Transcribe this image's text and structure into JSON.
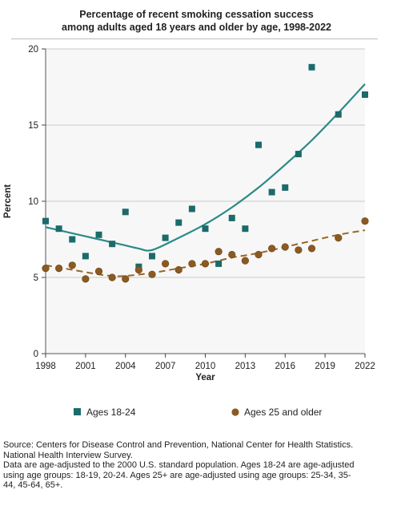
{
  "title_line1": "Percentage of recent smoking cessation success",
  "title_line2": "among adults aged 18 years and older by age, 1998-2022",
  "source_lines": [
    "Source: Centers for Disease Control and Prevention, National Center for Health Statistics.",
    "National Health Interview Survey.",
    "Data are age-adjusted to the 2000 U.S. standard population. Ages 18-24 are age-adjusted",
    "using age groups: 18-19, 20-24. Ages 25+ are age-adjusted using age groups: 25-34, 35-",
    "44, 45-64, 65+."
  ],
  "colors": {
    "young": "#1b6b6b",
    "young_line": "#2a8a85",
    "older": "#8b5a22",
    "older_line": "#9b6526",
    "plot_bg": "#f7f7f7",
    "grid": "#c8c8c8"
  },
  "chart_data": {
    "type": "scatter",
    "title": "Percentage of recent smoking cessation success among adults aged 18 years and older by age, 1998-2022",
    "xlabel": "Year",
    "ylabel": "Percent",
    "xlim": [
      1998,
      2022
    ],
    "ylim": [
      0,
      20
    ],
    "xticks": [
      1998,
      2001,
      2004,
      2007,
      2010,
      2013,
      2016,
      2019,
      2022
    ],
    "yticks": [
      0,
      5,
      10,
      15,
      20
    ],
    "grid": true,
    "legend_position": "bottom",
    "series": [
      {
        "name": "Ages 18-24",
        "marker": "square",
        "x": [
          1998,
          1999,
          2000,
          2001,
          2002,
          2003,
          2004,
          2005,
          2006,
          2007,
          2008,
          2009,
          2010,
          2011,
          2012,
          2013,
          2014,
          2015,
          2016,
          2017,
          2018,
          2020,
          2022
        ],
        "y": [
          8.7,
          8.2,
          7.5,
          6.4,
          7.8,
          7.2,
          9.3,
          5.7,
          6.4,
          7.6,
          8.6,
          9.5,
          8.2,
          5.9,
          8.9,
          8.2,
          13.7,
          10.6,
          10.9,
          13.1,
          18.8,
          15.7,
          17.0
        ],
        "trend_x": [
          1998,
          2000,
          2002,
          2004,
          2005,
          2006,
          2008,
          2010,
          2012,
          2014,
          2016,
          2018,
          2020,
          2022
        ],
        "trend_y": [
          8.3,
          7.9,
          7.5,
          7.1,
          6.9,
          6.8,
          7.6,
          8.5,
          9.6,
          10.9,
          12.4,
          14.0,
          15.8,
          17.7
        ]
      },
      {
        "name": "Ages 25 and older",
        "marker": "circle",
        "x": [
          1998,
          1999,
          2000,
          2001,
          2002,
          2003,
          2004,
          2005,
          2006,
          2007,
          2008,
          2009,
          2010,
          2011,
          2012,
          2013,
          2014,
          2015,
          2016,
          2017,
          2018,
          2020,
          2022
        ],
        "y": [
          5.6,
          5.6,
          5.8,
          4.9,
          5.4,
          5.0,
          4.9,
          5.5,
          5.2,
          5.9,
          5.5,
          5.9,
          5.9,
          6.7,
          6.5,
          6.1,
          6.5,
          6.9,
          7.0,
          6.8,
          6.9,
          7.6,
          8.7
        ],
        "trend_x": [
          1998,
          2000,
          2002,
          2003,
          2004,
          2006,
          2008,
          2010,
          2012,
          2014,
          2016,
          2018,
          2020,
          2022
        ],
        "trend_y": [
          5.8,
          5.5,
          5.2,
          5.1,
          5.1,
          5.3,
          5.6,
          5.9,
          6.3,
          6.6,
          7.0,
          7.4,
          7.8,
          8.1
        ]
      }
    ]
  }
}
